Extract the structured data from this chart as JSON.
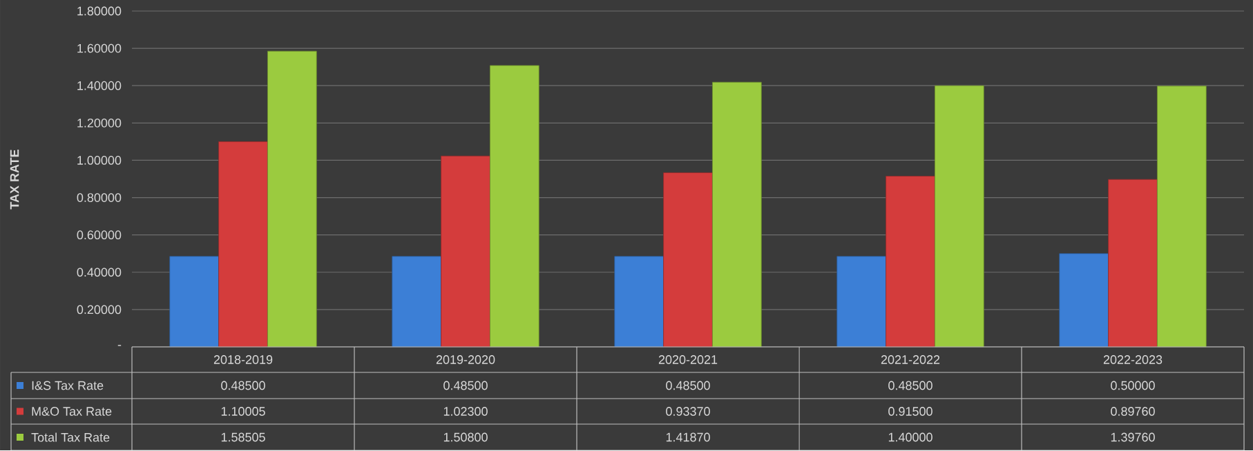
{
  "chart_data": {
    "type": "bar",
    "ylabel": "TAX RATE",
    "categories": [
      "2018-2019",
      "2019-2020",
      "2020-2021",
      "2021-2022",
      "2022-2023"
    ],
    "series": [
      {
        "name": "I&S Tax Rate",
        "color": "#3c7fd6",
        "values": [
          0.485,
          0.485,
          0.485,
          0.485,
          0.5
        ],
        "value_labels": [
          "0.48500",
          "0.48500",
          "0.48500",
          "0.48500",
          "0.50000"
        ]
      },
      {
        "name": "M&O Tax Rate",
        "color": "#d43c3c",
        "values": [
          1.10005,
          1.023,
          0.9337,
          0.915,
          0.8976
        ],
        "value_labels": [
          "1.10005",
          "1.02300",
          "0.93370",
          "0.91500",
          "0.89760"
        ]
      },
      {
        "name": "Total Tax Rate",
        "color": "#9bcb3f",
        "values": [
          1.58505,
          1.508,
          1.4187,
          1.4,
          1.3976
        ],
        "value_labels": [
          "1.58505",
          "1.50800",
          "1.41870",
          "1.40000",
          "1.39760"
        ]
      }
    ],
    "ylim": [
      0,
      1.8
    ],
    "yticks": [
      {
        "value": 0,
        "label": "-"
      },
      {
        "value": 0.2,
        "label": "0.20000"
      },
      {
        "value": 0.4,
        "label": "0.40000"
      },
      {
        "value": 0.6,
        "label": "0.60000"
      },
      {
        "value": 0.8,
        "label": "0.80000"
      },
      {
        "value": 1.0,
        "label": "1.00000"
      },
      {
        "value": 1.2,
        "label": "1.20000"
      },
      {
        "value": 1.4,
        "label": "1.40000"
      },
      {
        "value": 1.6,
        "label": "1.60000"
      },
      {
        "value": 1.8,
        "label": "1.80000"
      }
    ],
    "grid": "y",
    "legend": "bottom"
  }
}
